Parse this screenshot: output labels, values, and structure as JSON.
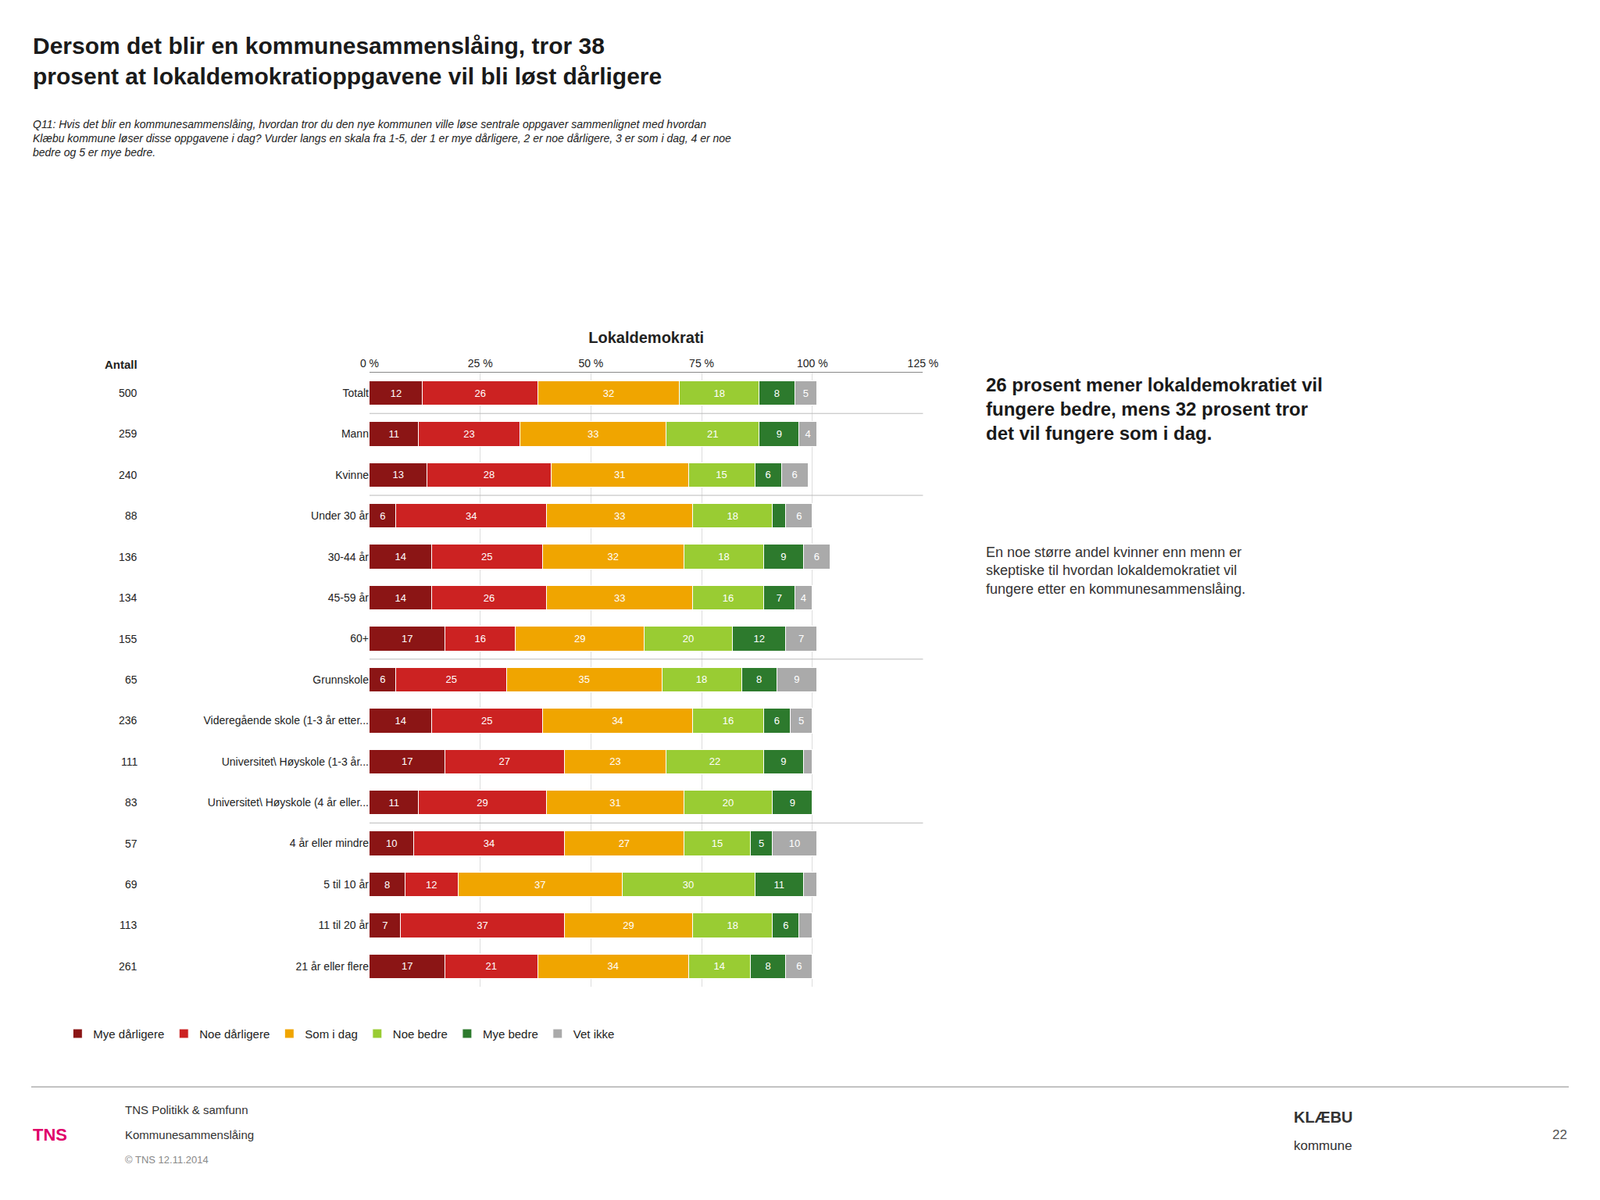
{
  "chart_data": {
    "type": "bar",
    "orientation": "horizontal",
    "stacked": true,
    "title": "Lokaldemokrati",
    "subtitle": "Q11: Hvis det blir en kommunesammenslåing, hvordan tror du den nye kommunen ville løse sentrale oppgaver sammenlignet med hvordan\nKlæbu kommune løser disse oppgavene i dag? Vurder langs en skala fra 1-5, der 1 er mye dårligere, 2 er noe dårligere, 3 er som i dag, 4 er noe\nbedre og 5 er mye bedre.",
    "annotations": [
      "Dersom det blir en kommunesammenslåing, tror 38\nprosent at lokaldemokratioppgavene vil bli løst dårligere",
      "26 prosent mener lokaldemokratiet vil\nfungere bedre, mens 32 prosent tror\ndet vil fungere som i dag.",
      "En noe større andel kvinner enn menn er\nskeptiske til hvordan lokaldemokratiet vil\nfungere etter en kommunesammenslåing.",
      "Antall",
      "TNS Politikk & samfunn",
      "Kommunesammenslåing",
      "© TNS 12.11.2014",
      "TNS",
      "KLÆBU",
      "kommune",
      "22"
    ],
    "categories": [
      "Totalt",
      "Mann",
      "Kvinne",
      "Under 30 år",
      "30-44 år",
      "45-59 år",
      "60+",
      "Grunnskole",
      "Videregående skole (1-3 år etter...",
      "Universitet\\ Høyskole (1-3 år...",
      "Universitet\\ Høyskole (4 år eller...",
      "4 år eller mindre",
      "5 til 10 år",
      "11 til 20 år",
      "21 år eller flere"
    ],
    "counts": [
      500,
      259,
      240,
      88,
      136,
      134,
      155,
      65,
      236,
      111,
      83,
      57,
      69,
      113,
      261
    ],
    "series": [
      {
        "name": "Mye dårligere",
        "color": "#8B1515",
        "values": [
          12,
          11,
          13,
          6,
          14,
          14,
          17,
          6,
          14,
          17,
          11,
          10,
          8,
          7,
          17
        ],
        "value_labels": [
          "12",
          "11",
          "13",
          "6",
          "14",
          "14",
          "17",
          "6",
          "14",
          "17",
          "11",
          "10",
          "8",
          "7",
          "17"
        ]
      },
      {
        "name": "Noe dårligere",
        "color": "#CC2222",
        "values": [
          26,
          23,
          28,
          34,
          25,
          26,
          16,
          25,
          25,
          27,
          29,
          34,
          12,
          37,
          21
        ],
        "value_labels": [
          "26",
          "23",
          "28",
          "34",
          "25",
          "26",
          "16",
          "25",
          "25",
          "27",
          "29",
          "34",
          "12",
          "37",
          "21"
        ]
      },
      {
        "name": "Som i dag",
        "color": "#F0A500",
        "values": [
          32,
          33,
          31,
          33,
          32,
          33,
          29,
          35,
          34,
          23,
          31,
          27,
          37,
          29,
          34
        ],
        "value_labels": [
          "32",
          "33",
          "31",
          "33",
          "32",
          "33",
          "29",
          "35",
          "34",
          "23",
          "31",
          "27",
          "37",
          "29",
          "34"
        ]
      },
      {
        "name": "Noe bedre",
        "color": "#99CC33",
        "values": [
          18,
          21,
          15,
          18,
          18,
          16,
          20,
          18,
          16,
          22,
          20,
          15,
          30,
          18,
          14
        ],
        "value_labels": [
          "18",
          "21",
          "15",
          "18",
          "18",
          "16",
          "20",
          "18",
          "16",
          "22",
          "20",
          "15",
          "30",
          "18",
          "14"
        ]
      },
      {
        "name": "Mye bedre",
        "color": "#2D7A2D",
        "values": [
          8,
          9,
          6,
          3,
          9,
          7,
          12,
          8,
          6,
          9,
          9,
          5,
          11,
          6,
          8
        ],
        "value_labels": [
          "8",
          "9",
          "6",
          null,
          "9",
          "7",
          "12",
          "8",
          "6",
          "9",
          "9",
          "5",
          "11",
          "6",
          "8"
        ]
      },
      {
        "name": "Vet ikke",
        "color": "#AAAAAA",
        "values": [
          5,
          4,
          6,
          6,
          6,
          4,
          7,
          9,
          5,
          2,
          0,
          10,
          3,
          3,
          6
        ],
        "value_labels": [
          "5",
          "4",
          "6",
          "6",
          "6",
          "4",
          "7",
          "9",
          "5",
          null,
          null,
          "10",
          null,
          null,
          "6"
        ]
      }
    ],
    "xlim": [
      0,
      125
    ],
    "xticks": [
      {
        "value": 0,
        "label": "0 %"
      },
      {
        "value": 25,
        "label": "25 %"
      },
      {
        "value": 50,
        "label": "50 %"
      },
      {
        "value": 75,
        "label": "75 %"
      },
      {
        "value": 100,
        "label": "100 %"
      },
      {
        "value": 125,
        "label": "125 %"
      }
    ],
    "grid": true,
    "legend": "bottom",
    "data_labels": true
  }
}
